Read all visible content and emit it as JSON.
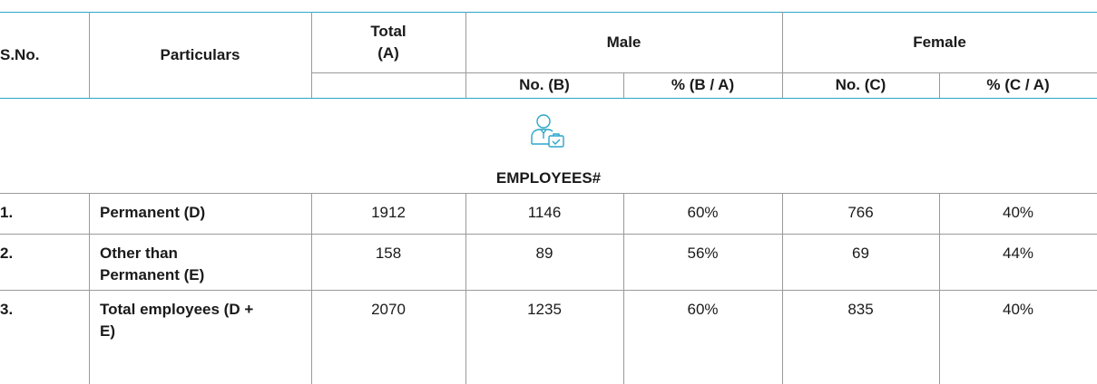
{
  "table": {
    "header": {
      "sno": "S.No.",
      "particulars": "Particulars",
      "total": "Total (A)",
      "male": "Male",
      "female": "Female",
      "sub": [
        "No. (B)",
        "% (B / A)",
        "No. (C)",
        "% (C / A)"
      ]
    },
    "section": "EMPLOYEES#",
    "rows": [
      [
        "1.",
        "Permanent (D)",
        "1912",
        "1146",
        "60%",
        "766",
        "40%"
      ],
      [
        "2.",
        "Other than Permanent (E)",
        "158",
        "89",
        "56%",
        "69",
        "44%"
      ],
      [
        "3.",
        "Total employees (D + E)",
        "2070",
        "1235",
        "60%",
        "835",
        "40%"
      ]
    ]
  }
}
